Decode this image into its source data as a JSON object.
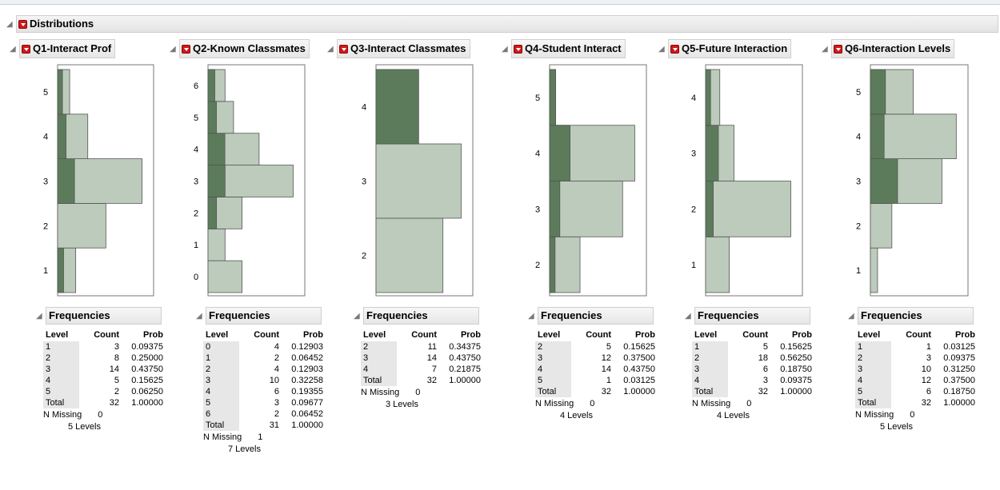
{
  "distributions_title": "Distributions",
  "freq_title": "Frequencies",
  "cols": {
    "level": "Level",
    "count": "Count",
    "prob": "Prob"
  },
  "n_missing_label": "N Missing",
  "colors": {
    "light": "#bccbbb",
    "dark": "#5c7b5b",
    "border": "#555555"
  },
  "panels": [
    {
      "title": "Q1-Interact Prof",
      "levels": [
        "1",
        "2",
        "3",
        "4",
        "5"
      ],
      "counts": [
        3,
        8,
        14,
        5,
        2
      ],
      "probs": [
        "0.09375",
        "0.25000",
        "0.43750",
        "0.15625",
        "0.06250"
      ],
      "dark_fraction": [
        0.33,
        0,
        0.2,
        0.28,
        0.4
      ],
      "total": 32,
      "total_prob": "1.00000",
      "n_missing": 0,
      "levels_text": "5 Levels"
    },
    {
      "title": "Q2-Known Classmates",
      "levels": [
        "0",
        "1",
        "2",
        "3",
        "4",
        "5",
        "6"
      ],
      "counts": [
        4,
        2,
        4,
        10,
        6,
        3,
        2
      ],
      "probs": [
        "0.12903",
        "0.06452",
        "0.12903",
        "0.32258",
        "0.19355",
        "0.09677",
        "0.06452"
      ],
      "dark_fraction": [
        0,
        0,
        0.25,
        0.2,
        0.33,
        0.33,
        0.4
      ],
      "total": 31,
      "total_prob": "1.00000",
      "n_missing": 1,
      "levels_text": "7 Levels"
    },
    {
      "title": "Q3-Interact Classmates",
      "levels": [
        "2",
        "3",
        "4"
      ],
      "counts": [
        11,
        14,
        7
      ],
      "probs": [
        "0.34375",
        "0.43750",
        "0.21875"
      ],
      "dark_fraction": [
        0,
        0,
        1
      ],
      "total": 32,
      "total_prob": "1.00000",
      "n_missing": 0,
      "levels_text": "3 Levels"
    },
    {
      "title": "Q4-Student Interact",
      "levels": [
        "2",
        "3",
        "4",
        "5"
      ],
      "counts": [
        5,
        12,
        14,
        1
      ],
      "probs": [
        "0.15625",
        "0.37500",
        "0.43750",
        "0.03125"
      ],
      "dark_fraction": [
        0.18,
        0.14,
        0.24,
        1
      ],
      "total": 32,
      "total_prob": "1.00000",
      "n_missing": 0,
      "levels_text": "4 Levels"
    },
    {
      "title": "Q5-Future Interaction",
      "levels": [
        "1",
        "2",
        "3",
        "4"
      ],
      "counts": [
        5,
        18,
        6,
        3
      ],
      "probs": [
        "0.15625",
        "0.56250",
        "0.18750",
        "0.09375"
      ],
      "dark_fraction": [
        0,
        0.09,
        0.45,
        0.35
      ],
      "total": 32,
      "total_prob": "1.00000",
      "n_missing": 0,
      "levels_text": "4 Levels"
    },
    {
      "title": "Q6-Interaction Levels",
      "levels": [
        "1",
        "2",
        "3",
        "4",
        "5"
      ],
      "counts": [
        1,
        3,
        10,
        12,
        6
      ],
      "probs": [
        "0.03125",
        "0.09375",
        "0.31250",
        "0.37500",
        "0.18750"
      ],
      "dark_fraction": [
        0,
        0,
        0.38,
        0.16,
        0.35
      ],
      "total": 32,
      "total_prob": "1.00000",
      "n_missing": 0,
      "levels_text": "5 Levels"
    }
  ]
}
